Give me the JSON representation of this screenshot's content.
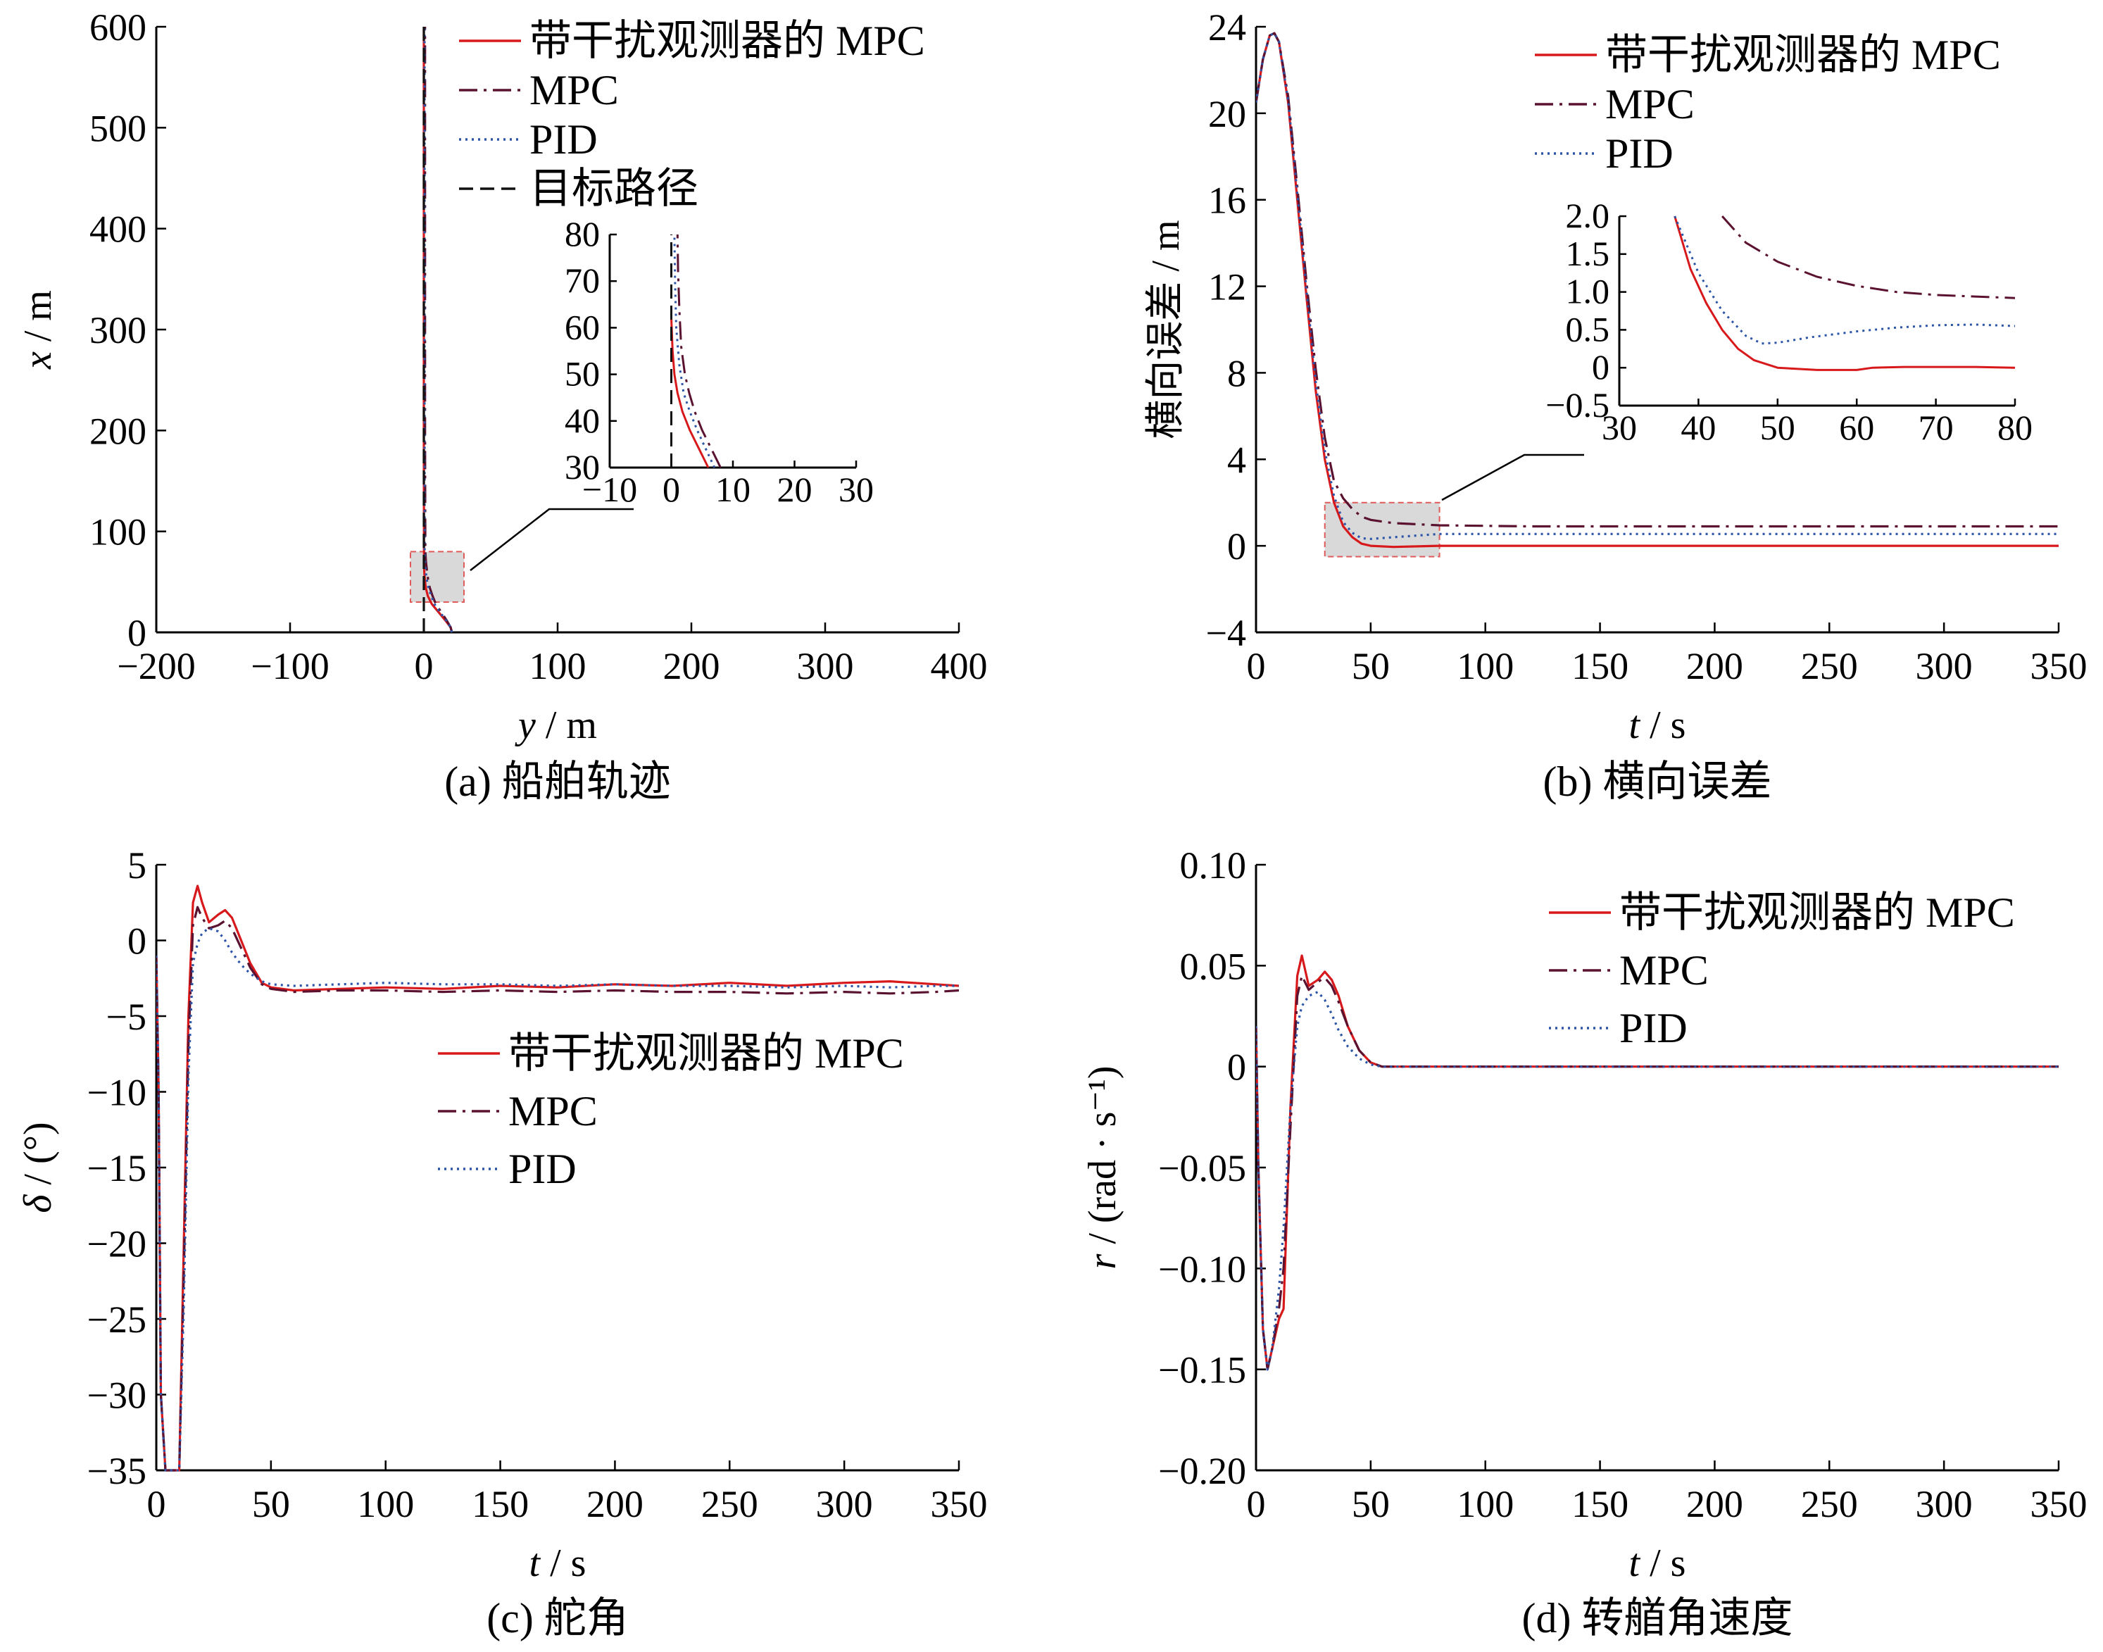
{
  "colors": {
    "observer_mpc": "#d7191c",
    "mpc": "#5a1230",
    "pid": "#2c54a8",
    "target": "#111111",
    "zoom_box_fill": "#d9d9d9",
    "zoom_box_stroke": "#e05a5a"
  },
  "chart_data": [
    {
      "id": "a",
      "type": "line",
      "caption": "(a)  船舶轨迹",
      "xlabel": "y / m",
      "ylabel": "x / m",
      "xlim": [
        -200,
        400
      ],
      "ylim": [
        0,
        600
      ],
      "xticks": [
        "−200",
        "−100",
        "0",
        "100",
        "200",
        "300",
        "400"
      ],
      "yticks": [
        "0",
        "100",
        "200",
        "300",
        "400",
        "500",
        "600"
      ],
      "legend": {
        "position": "top-right",
        "entries": [
          "带干扰观测器的 MPC",
          "MPC",
          "PID",
          "目标路径"
        ]
      },
      "series": [
        {
          "name": "带干扰观测器的 MPC",
          "style": "solid",
          "color_key": "observer_mpc",
          "x": [
            21,
            20,
            16,
            11,
            6,
            3,
            1.5,
            0.8,
            0.3,
            0.1,
            0,
            0
          ],
          "y": [
            0,
            5,
            12,
            20,
            28,
            36,
            44,
            52,
            60,
            80,
            200,
            600
          ]
        },
        {
          "name": "MPC",
          "style": "dashdot",
          "color_key": "mpc",
          "x": [
            21,
            20,
            17,
            13,
            9,
            6.5,
            4.5,
            3.2,
            2.4,
            1.6,
            1.1,
            0.9,
            0.9
          ],
          "y": [
            0,
            5,
            12,
            20,
            28,
            36,
            44,
            52,
            60,
            70,
            80,
            200,
            600
          ]
        },
        {
          "name": "PID",
          "style": "dotted",
          "color_key": "pid",
          "x": [
            21,
            20,
            16.5,
            12,
            8,
            5.5,
            3.5,
            2.2,
            1.4,
            0.9,
            0.6,
            0.5,
            0.5
          ],
          "y": [
            0,
            5,
            12,
            20,
            28,
            36,
            44,
            52,
            60,
            70,
            80,
            200,
            600
          ]
        },
        {
          "name": "目标路径",
          "style": "dashed",
          "color_key": "target",
          "x": [
            0,
            0
          ],
          "y": [
            0,
            600
          ]
        }
      ],
      "zoom_box": {
        "xlim": [
          -10,
          30
        ],
        "ylim": [
          30,
          80
        ]
      },
      "inset": {
        "xlim": [
          -10,
          30
        ],
        "ylim": [
          30,
          80
        ],
        "xticks": [
          "−10",
          "0",
          "10",
          "20",
          "30"
        ],
        "yticks": [
          "30",
          "40",
          "50",
          "60",
          "70",
          "80"
        ],
        "series": [
          {
            "name": "带干扰观测器的 MPC",
            "style": "solid",
            "color_key": "observer_mpc",
            "x": [
              6,
              4.5,
              3,
              1.8,
              1.0,
              0.5,
              0.2,
              0
            ],
            "y": [
              30,
              34,
              38,
              42,
              46,
              50,
              55,
              62
            ]
          },
          {
            "name": "MPC",
            "style": "dashdot",
            "color_key": "mpc",
            "x": [
              8,
              6.5,
              5,
              3.8,
              2.9,
              2.2,
              1.6,
              1.3,
              1.1,
              1.0
            ],
            "y": [
              30,
              34,
              38,
              42,
              46,
              50,
              56,
              64,
              72,
              80
            ]
          },
          {
            "name": "PID",
            "style": "dotted",
            "color_key": "pid",
            "x": [
              7,
              5.6,
              4.2,
              3.0,
              2.0,
              1.3,
              0.8,
              0.6,
              0.5
            ],
            "y": [
              30,
              34,
              38,
              42,
              46,
              52,
              60,
              70,
              80
            ]
          },
          {
            "name": "目标路径",
            "style": "dashed",
            "color_key": "target",
            "x": [
              0,
              0
            ],
            "y": [
              30,
              80
            ]
          }
        ]
      }
    },
    {
      "id": "b",
      "type": "line",
      "caption": "(b)  横向误差",
      "xlabel": "t / s",
      "ylabel": "横向误差 / m",
      "xlim": [
        0,
        350
      ],
      "ylim": [
        -4,
        24
      ],
      "xticks": [
        "0",
        "50",
        "100",
        "150",
        "200",
        "250",
        "300",
        "350"
      ],
      "yticks": [
        "−4",
        "0",
        "4",
        "8",
        "12",
        "16",
        "20",
        "24"
      ],
      "legend": {
        "position": "top-right",
        "entries": [
          "带干扰观测器的 MPC",
          "MPC",
          "PID"
        ]
      },
      "series": [
        {
          "name": "带干扰观测器的 MPC",
          "style": "solid",
          "color_key": "observer_mpc",
          "x": [
            0,
            3,
            6,
            8,
            10,
            14,
            18,
            22,
            26,
            30,
            34,
            38,
            42,
            46,
            50,
            60,
            80,
            120,
            200,
            350
          ],
          "y": [
            20.5,
            22.5,
            23.6,
            23.7,
            23.3,
            20.5,
            16,
            11.5,
            7.2,
            4.0,
            2.0,
            0.9,
            0.4,
            0.1,
            0,
            -0.05,
            0,
            0,
            0,
            0
          ]
        },
        {
          "name": "MPC",
          "style": "dashdot",
          "color_key": "mpc",
          "x": [
            0,
            3,
            6,
            8,
            10,
            14,
            18,
            22,
            26,
            30,
            34,
            38,
            42,
            46,
            50,
            60,
            80,
            120,
            200,
            350
          ],
          "y": [
            20.5,
            22.5,
            23.6,
            23.7,
            23.3,
            20.8,
            16.6,
            12.2,
            8.2,
            5.0,
            3.0,
            2.2,
            1.7,
            1.35,
            1.2,
            1.05,
            0.95,
            0.9,
            0.9,
            0.9
          ]
        },
        {
          "name": "PID",
          "style": "dotted",
          "color_key": "pid",
          "x": [
            0,
            3,
            6,
            8,
            10,
            14,
            18,
            22,
            26,
            30,
            34,
            38,
            42,
            46,
            50,
            60,
            80,
            120,
            200,
            350
          ],
          "y": [
            20.5,
            22.5,
            23.6,
            23.7,
            23.3,
            20.6,
            16.3,
            11.8,
            7.6,
            4.4,
            2.3,
            1.1,
            0.6,
            0.35,
            0.32,
            0.4,
            0.55,
            0.55,
            0.55,
            0.55
          ]
        }
      ],
      "zoom_box": {
        "xlim": [
          30,
          80
        ],
        "ylim": [
          -0.5,
          2.0
        ]
      },
      "inset": {
        "xlim": [
          30,
          80
        ],
        "ylim": [
          -0.5,
          2.0
        ],
        "xticks": [
          "30",
          "40",
          "50",
          "60",
          "70",
          "80"
        ],
        "yticks": [
          "−0.5",
          "0",
          "0.5",
          "1.0",
          "1.5",
          "2.0"
        ],
        "series": [
          {
            "name": "带干扰观测器的 MPC",
            "style": "solid",
            "color_key": "observer_mpc",
            "x": [
              37,
              39,
              41,
              43,
              45,
              47,
              50,
              55,
              60,
              62,
              66,
              70,
              75,
              80
            ],
            "y": [
              2.0,
              1.3,
              0.85,
              0.5,
              0.25,
              0.1,
              0.0,
              -0.03,
              -0.03,
              0.0,
              0.01,
              0.01,
              0.01,
              0.0
            ]
          },
          {
            "name": "MPC",
            "style": "dashdot",
            "color_key": "mpc",
            "x": [
              43,
              46,
              50,
              55,
              60,
              65,
              70,
              75,
              80
            ],
            "y": [
              2.0,
              1.65,
              1.4,
              1.2,
              1.08,
              1.0,
              0.96,
              0.94,
              0.92
            ]
          },
          {
            "name": "PID",
            "style": "dotted",
            "color_key": "pid",
            "x": [
              37,
              40,
              43,
              46,
              48,
              50,
              54,
              60,
              65,
              70,
              75,
              80
            ],
            "y": [
              2.0,
              1.25,
              0.75,
              0.42,
              0.32,
              0.33,
              0.4,
              0.48,
              0.53,
              0.56,
              0.57,
              0.55
            ]
          }
        ]
      }
    },
    {
      "id": "c",
      "type": "line",
      "caption": "(c)  舵角",
      "xlabel": "t / s",
      "ylabel": "δ / (°)",
      "xlim": [
        0,
        350
      ],
      "ylim": [
        -35,
        5
      ],
      "xticks": [
        "0",
        "50",
        "100",
        "150",
        "200",
        "250",
        "300",
        "350"
      ],
      "yticks": [
        "−35",
        "−30",
        "−25",
        "−20",
        "−15",
        "−10",
        "−5",
        "0",
        "5"
      ],
      "legend": {
        "position": "center-right",
        "entries": [
          "带干扰观测器的 MPC",
          "MPC",
          "PID"
        ]
      },
      "series": [
        {
          "name": "带干扰观测器的 MPC",
          "style": "solid",
          "color_key": "observer_mpc",
          "x": [
            0,
            1,
            2,
            4,
            8,
            10,
            12,
            14,
            16,
            18,
            20,
            23,
            27,
            30,
            33,
            37,
            41,
            46,
            50,
            60,
            80,
            100,
            125,
            150,
            175,
            200,
            225,
            250,
            275,
            300,
            320,
            340,
            350
          ],
          "y": [
            -1,
            -10,
            -30,
            -35,
            -35,
            -35,
            -20,
            -5,
            2.5,
            3.6,
            2.5,
            1.2,
            1.7,
            2.0,
            1.5,
            0,
            -1.5,
            -2.8,
            -3.1,
            -3.3,
            -3.2,
            -3.1,
            -3.2,
            -3.0,
            -3.1,
            -2.9,
            -3.0,
            -2.8,
            -3.0,
            -2.8,
            -2.7,
            -2.9,
            -3.0
          ]
        },
        {
          "name": "MPC",
          "style": "dashdot",
          "color_key": "mpc",
          "x": [
            0,
            1,
            2,
            4,
            8,
            10,
            12,
            14,
            16,
            18,
            20,
            23,
            27,
            30,
            33,
            37,
            41,
            46,
            50,
            60,
            80,
            100,
            125,
            150,
            175,
            200,
            225,
            250,
            275,
            300,
            320,
            340,
            350
          ],
          "y": [
            -1,
            -10,
            -30,
            -35,
            -35,
            -35,
            -22,
            -7,
            1.0,
            2.2,
            1.5,
            0.8,
            1.0,
            1.3,
            0.8,
            -0.5,
            -1.8,
            -2.9,
            -3.2,
            -3.4,
            -3.3,
            -3.3,
            -3.4,
            -3.3,
            -3.4,
            -3.3,
            -3.4,
            -3.4,
            -3.5,
            -3.4,
            -3.5,
            -3.4,
            -3.3
          ]
        },
        {
          "name": "PID",
          "style": "dotted",
          "color_key": "pid",
          "x": [
            0,
            1,
            2,
            4,
            8,
            10,
            12,
            14,
            16,
            18,
            20,
            23,
            27,
            30,
            33,
            37,
            41,
            46,
            50,
            60,
            80,
            100,
            125,
            150,
            175,
            200,
            225,
            250,
            275,
            300,
            320,
            340,
            350
          ],
          "y": [
            -1,
            -10,
            -30,
            -35,
            -35,
            -35,
            -24,
            -9,
            -1.5,
            -0.2,
            0.5,
            0.8,
            0.6,
            0.0,
            -0.8,
            -1.6,
            -2.2,
            -2.7,
            -2.9,
            -3.0,
            -2.9,
            -2.8,
            -2.9,
            -2.9,
            -3.0,
            -2.9,
            -3.0,
            -3.0,
            -3.1,
            -3.0,
            -3.1,
            -3.0,
            -3.0
          ]
        }
      ]
    },
    {
      "id": "d",
      "type": "line",
      "caption": "(d)  转艏角速度",
      "xlabel": "t / s",
      "ylabel": "r / (rad · s⁻¹)",
      "xlim": [
        0,
        350
      ],
      "ylim": [
        -0.2,
        0.1
      ],
      "xticks": [
        "0",
        "50",
        "100",
        "150",
        "200",
        "250",
        "300",
        "350"
      ],
      "yticks": [
        "−0.20",
        "−0.15",
        "−0.10",
        "−0.05",
        "0",
        "0.05",
        "0.10"
      ],
      "legend": {
        "position": "top-right",
        "entries": [
          "带干扰观测器的 MPC",
          "MPC",
          "PID"
        ]
      },
      "series": [
        {
          "name": "带干扰观测器的 MPC",
          "style": "solid",
          "color_key": "observer_mpc",
          "x": [
            0,
            1,
            3,
            5,
            7,
            10,
            12,
            15,
            18,
            20,
            23,
            27,
            30,
            33,
            36,
            40,
            45,
            50,
            55,
            70,
            100,
            150,
            200,
            250,
            300,
            350
          ],
          "y": [
            0.02,
            -0.05,
            -0.13,
            -0.15,
            -0.14,
            -0.125,
            -0.12,
            -0.02,
            0.045,
            0.055,
            0.04,
            0.043,
            0.047,
            0.043,
            0.035,
            0.02,
            0.008,
            0.002,
            0.0,
            0.0,
            0.0,
            0.0,
            0.0,
            0.0,
            0.0,
            0.0
          ]
        },
        {
          "name": "MPC",
          "style": "dashdot",
          "color_key": "mpc",
          "x": [
            0,
            1,
            3,
            5,
            7,
            10,
            12,
            15,
            18,
            20,
            23,
            27,
            30,
            33,
            36,
            40,
            45,
            50,
            55,
            70,
            100,
            150,
            200,
            250,
            300,
            350
          ],
          "y": [
            0.02,
            -0.05,
            -0.13,
            -0.15,
            -0.14,
            -0.12,
            -0.1,
            -0.03,
            0.035,
            0.045,
            0.038,
            0.042,
            0.044,
            0.04,
            0.032,
            0.02,
            0.008,
            0.002,
            0.0,
            0.0,
            0.0,
            0.0,
            0.0,
            0.0,
            0.0,
            0.0
          ]
        },
        {
          "name": "PID",
          "style": "dotted",
          "color_key": "pid",
          "x": [
            0,
            1,
            3,
            5,
            7,
            10,
            12,
            15,
            18,
            20,
            23,
            27,
            30,
            33,
            36,
            40,
            45,
            50,
            55,
            70,
            100,
            150,
            200,
            250,
            300,
            350
          ],
          "y": [
            0.02,
            -0.05,
            -0.13,
            -0.15,
            -0.14,
            -0.11,
            -0.08,
            -0.02,
            0.02,
            0.03,
            0.035,
            0.037,
            0.033,
            0.026,
            0.018,
            0.01,
            0.004,
            0.001,
            0.0,
            0.0,
            0.0,
            0.0,
            0.0,
            0.0,
            0.0,
            0.0
          ]
        }
      ]
    }
  ]
}
